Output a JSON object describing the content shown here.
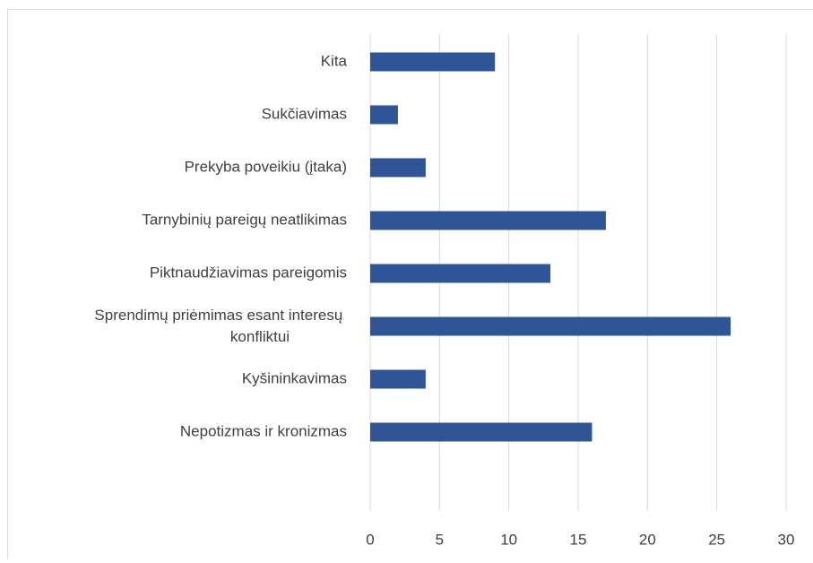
{
  "chart_data": {
    "type": "bar",
    "orientation": "horizontal",
    "categories": [
      "Kita",
      "Sukčiavimas",
      "Prekyba poveikiu (įtaka)",
      "Tarnybinių pareigų neatlikimas",
      "Piktnaudžiavimas pareigomis",
      "Sprendimų priėmimas esant interesų konfliktui",
      "Kyšininkavimas",
      "Nepotizmas ir kronizmas"
    ],
    "values": [
      9,
      2,
      4,
      17,
      13,
      26,
      4,
      16
    ],
    "color": "#2f5597",
    "xlim": [
      0,
      30
    ],
    "xticks": [
      0,
      5,
      10,
      15,
      20,
      25,
      30
    ],
    "grid": true
  }
}
